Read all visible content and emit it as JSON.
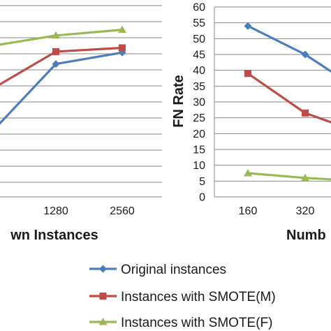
{
  "chart_data": [
    {
      "type": "line",
      "xlabel": "wn Instances",
      "x_ticks": [
        "1280",
        "2560"
      ],
      "series": [
        {
          "name": "Original instances",
          "color": "#4a7ebb",
          "marker": "diamond",
          "x": [
            0,
            1280,
            2560
          ],
          "values": [
            0.31,
            0.7,
            0.76
          ]
        },
        {
          "name": "Instances with SMOTE(M)",
          "color": "#be4b48",
          "marker": "square",
          "x": [
            0,
            1280,
            2560
          ],
          "values": [
            0.55,
            0.765,
            0.785
          ]
        },
        {
          "name": "Instances with SMOTE(F)",
          "color": "#98b954",
          "marker": "triangle",
          "x": [
            0,
            1280,
            2560
          ],
          "values": [
            0.79,
            0.85,
            0.88
          ]
        }
      ]
    },
    {
      "type": "line",
      "ylabel": "FN Rate",
      "xlabel": "Numb",
      "ylim": [
        0,
        60
      ],
      "y_ticks": [
        0,
        5,
        10,
        15,
        20,
        25,
        30,
        35,
        40,
        45,
        50,
        55,
        60
      ],
      "x_ticks": [
        "160",
        "320"
      ],
      "grid": "horizontal",
      "series": [
        {
          "name": "Original instances",
          "color": "#4a7ebb",
          "marker": "diamond",
          "x": [
            160,
            320,
            480
          ],
          "values": [
            54,
            45,
            33
          ]
        },
        {
          "name": "Instances with SMOTE(M)",
          "color": "#be4b48",
          "marker": "square",
          "x": [
            160,
            320,
            480
          ],
          "values": [
            39,
            26.5,
            20
          ]
        },
        {
          "name": "Instances with SMOTE(F)",
          "color": "#98b954",
          "marker": "triangle",
          "x": [
            160,
            320,
            480
          ],
          "values": [
            7.5,
            6,
            5
          ]
        }
      ]
    }
  ],
  "legend": {
    "placement": "bottom",
    "entries": [
      "Original instances",
      "Instances with SMOTE(M)",
      "Instances with SMOTE(F)"
    ]
  }
}
